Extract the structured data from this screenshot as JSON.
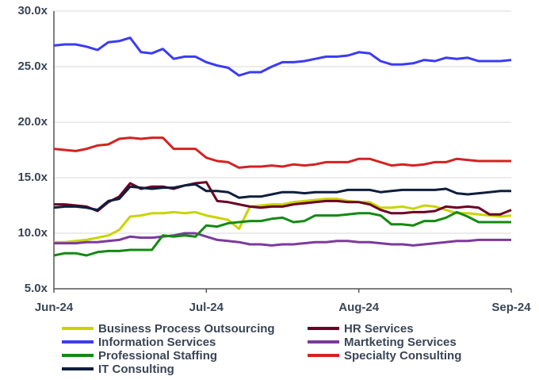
{
  "chart_data": {
    "type": "line",
    "categories": [
      "Jun-24",
      null,
      null,
      null,
      null,
      null,
      null,
      null,
      null,
      null,
      null,
      null,
      null,
      null,
      "Jul-24",
      null,
      null,
      null,
      null,
      null,
      null,
      null,
      null,
      null,
      null,
      null,
      null,
      null,
      "Aug-24",
      null,
      null,
      null,
      null,
      null,
      null,
      null,
      null,
      null,
      null,
      null,
      null,
      null,
      "Sep-24"
    ],
    "ylim": [
      5,
      30
    ],
    "yticks": [
      {
        "value": 5,
        "label": "5.0x"
      },
      {
        "value": 10,
        "label": "10.0x"
      },
      {
        "value": 15,
        "label": "15.0x"
      },
      {
        "value": 20,
        "label": "20.0x"
      },
      {
        "value": 25,
        "label": "25.0x"
      },
      {
        "value": 30,
        "label": "30.0x"
      }
    ],
    "grid": true,
    "legend": "bottom",
    "series": [
      {
        "name": "Business Process Outsourcing",
        "color": "#c9d400",
        "values": [
          9.2,
          9.2,
          9.3,
          9.4,
          9.6,
          9.8,
          10.3,
          11.5,
          11.6,
          11.8,
          11.8,
          11.9,
          11.8,
          11.9,
          11.6,
          11.4,
          11.2,
          10.4,
          12.4,
          12.5,
          12.6,
          12.6,
          12.8,
          12.9,
          13.0,
          13.1,
          13.1,
          12.9,
          12.8,
          12.8,
          12.3,
          12.3,
          12.4,
          12.2,
          12.5,
          12.4,
          12.1,
          11.8,
          11.8,
          11.7,
          11.6,
          11.5,
          11.6
        ]
      },
      {
        "name": "HR Services",
        "color": "#6b0024",
        "values": [
          12.6,
          12.6,
          12.5,
          12.4,
          12.0,
          12.8,
          13.3,
          14.5,
          14.0,
          14.2,
          14.2,
          14.0,
          14.3,
          14.5,
          14.6,
          12.9,
          12.8,
          12.6,
          12.4,
          12.3,
          12.4,
          12.4,
          12.6,
          12.7,
          12.8,
          12.9,
          12.9,
          12.8,
          12.8,
          12.6,
          12.1,
          11.8,
          11.8,
          11.9,
          11.9,
          12.0,
          12.4,
          12.3,
          12.4,
          12.3,
          11.7,
          11.7,
          12.1
        ]
      },
      {
        "name": "Information Services",
        "color": "#3b3bf2",
        "values": [
          26.9,
          27.0,
          27.0,
          26.8,
          26.5,
          27.2,
          27.3,
          27.6,
          26.3,
          26.2,
          26.6,
          25.7,
          25.9,
          25.9,
          25.4,
          25.1,
          24.9,
          24.2,
          24.5,
          24.5,
          25.0,
          25.4,
          25.4,
          25.5,
          25.7,
          25.9,
          25.9,
          26.0,
          26.3,
          26.2,
          25.5,
          25.2,
          25.2,
          25.3,
          25.6,
          25.5,
          25.8,
          25.7,
          25.8,
          25.5,
          25.5,
          25.5,
          25.6
        ]
      },
      {
        "name": "Martketing Services",
        "color": "#7b3a9c",
        "values": [
          9.1,
          9.1,
          9.1,
          9.2,
          9.2,
          9.3,
          9.4,
          9.7,
          9.6,
          9.6,
          9.7,
          9.8,
          10.0,
          10.0,
          9.7,
          9.4,
          9.3,
          9.2,
          9.0,
          9.0,
          8.9,
          9.0,
          9.0,
          9.1,
          9.2,
          9.2,
          9.3,
          9.3,
          9.2,
          9.2,
          9.1,
          9.0,
          9.0,
          8.9,
          9.0,
          9.1,
          9.2,
          9.3,
          9.3,
          9.4,
          9.4,
          9.4,
          9.4
        ]
      },
      {
        "name": "Professional Staffing",
        "color": "#128a12",
        "values": [
          8.0,
          8.2,
          8.2,
          8.0,
          8.3,
          8.4,
          8.4,
          8.5,
          8.5,
          8.5,
          9.8,
          9.7,
          9.8,
          9.7,
          10.7,
          10.6,
          10.9,
          11.0,
          11.1,
          11.1,
          11.3,
          11.4,
          11.0,
          11.1,
          11.6,
          11.6,
          11.6,
          11.7,
          11.8,
          11.8,
          11.6,
          10.8,
          10.8,
          10.7,
          11.1,
          11.1,
          11.4,
          11.9,
          11.5,
          11.0,
          11.0,
          11.0,
          11.0
        ]
      },
      {
        "name": "Specialty Consulting",
        "color": "#d42222",
        "values": [
          17.6,
          17.5,
          17.4,
          17.6,
          17.9,
          18.0,
          18.5,
          18.6,
          18.5,
          18.6,
          18.6,
          17.6,
          17.6,
          17.6,
          16.8,
          16.5,
          16.4,
          15.9,
          16.0,
          16.0,
          16.1,
          16.0,
          16.2,
          16.1,
          16.2,
          16.4,
          16.4,
          16.4,
          16.7,
          16.7,
          16.4,
          16.1,
          16.2,
          16.1,
          16.2,
          16.4,
          16.4,
          16.7,
          16.6,
          16.5,
          16.5,
          16.5,
          16.5
        ]
      },
      {
        "name": "IT Consulting",
        "color": "#0f1e3c",
        "values": [
          12.3,
          12.4,
          12.4,
          12.3,
          12.1,
          12.9,
          13.1,
          14.2,
          14.1,
          14.0,
          14.1,
          14.1,
          14.3,
          14.4,
          13.8,
          13.8,
          13.7,
          13.2,
          13.3,
          13.3,
          13.5,
          13.7,
          13.7,
          13.6,
          13.7,
          13.7,
          13.7,
          13.9,
          13.9,
          13.9,
          13.7,
          13.8,
          13.9,
          13.9,
          13.9,
          13.9,
          14.0,
          13.6,
          13.5,
          13.6,
          13.7,
          13.8,
          13.8
        ]
      }
    ]
  }
}
